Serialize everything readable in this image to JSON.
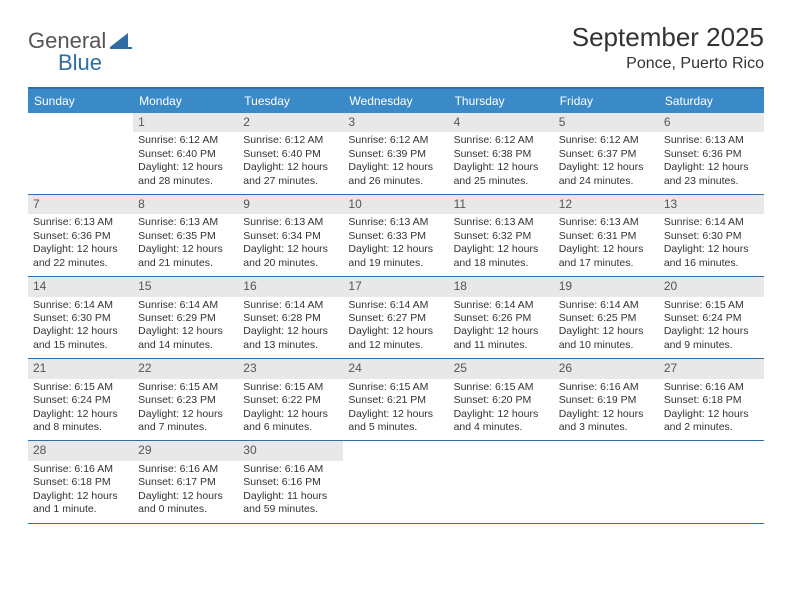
{
  "logo": {
    "text1": "General",
    "text2": "Blue"
  },
  "title": "September 2025",
  "location": "Ponce, Puerto Rico",
  "colors": {
    "header_bg": "#3a8ac8",
    "header_text": "#ffffff",
    "border": "#2f6ea8",
    "daynum_bg": "#e8e8e8",
    "text": "#333333"
  },
  "days_of_week": [
    "Sunday",
    "Monday",
    "Tuesday",
    "Wednesday",
    "Thursday",
    "Friday",
    "Saturday"
  ],
  "weeks": [
    [
      null,
      {
        "n": "1",
        "sr": "Sunrise: 6:12 AM",
        "ss": "Sunset: 6:40 PM",
        "dl": "Daylight: 12 hours and 28 minutes."
      },
      {
        "n": "2",
        "sr": "Sunrise: 6:12 AM",
        "ss": "Sunset: 6:40 PM",
        "dl": "Daylight: 12 hours and 27 minutes."
      },
      {
        "n": "3",
        "sr": "Sunrise: 6:12 AM",
        "ss": "Sunset: 6:39 PM",
        "dl": "Daylight: 12 hours and 26 minutes."
      },
      {
        "n": "4",
        "sr": "Sunrise: 6:12 AM",
        "ss": "Sunset: 6:38 PM",
        "dl": "Daylight: 12 hours and 25 minutes."
      },
      {
        "n": "5",
        "sr": "Sunrise: 6:12 AM",
        "ss": "Sunset: 6:37 PM",
        "dl": "Daylight: 12 hours and 24 minutes."
      },
      {
        "n": "6",
        "sr": "Sunrise: 6:13 AM",
        "ss": "Sunset: 6:36 PM",
        "dl": "Daylight: 12 hours and 23 minutes."
      }
    ],
    [
      {
        "n": "7",
        "sr": "Sunrise: 6:13 AM",
        "ss": "Sunset: 6:36 PM",
        "dl": "Daylight: 12 hours and 22 minutes."
      },
      {
        "n": "8",
        "sr": "Sunrise: 6:13 AM",
        "ss": "Sunset: 6:35 PM",
        "dl": "Daylight: 12 hours and 21 minutes."
      },
      {
        "n": "9",
        "sr": "Sunrise: 6:13 AM",
        "ss": "Sunset: 6:34 PM",
        "dl": "Daylight: 12 hours and 20 minutes."
      },
      {
        "n": "10",
        "sr": "Sunrise: 6:13 AM",
        "ss": "Sunset: 6:33 PM",
        "dl": "Daylight: 12 hours and 19 minutes."
      },
      {
        "n": "11",
        "sr": "Sunrise: 6:13 AM",
        "ss": "Sunset: 6:32 PM",
        "dl": "Daylight: 12 hours and 18 minutes."
      },
      {
        "n": "12",
        "sr": "Sunrise: 6:13 AM",
        "ss": "Sunset: 6:31 PM",
        "dl": "Daylight: 12 hours and 17 minutes."
      },
      {
        "n": "13",
        "sr": "Sunrise: 6:14 AM",
        "ss": "Sunset: 6:30 PM",
        "dl": "Daylight: 12 hours and 16 minutes."
      }
    ],
    [
      {
        "n": "14",
        "sr": "Sunrise: 6:14 AM",
        "ss": "Sunset: 6:30 PM",
        "dl": "Daylight: 12 hours and 15 minutes."
      },
      {
        "n": "15",
        "sr": "Sunrise: 6:14 AM",
        "ss": "Sunset: 6:29 PM",
        "dl": "Daylight: 12 hours and 14 minutes."
      },
      {
        "n": "16",
        "sr": "Sunrise: 6:14 AM",
        "ss": "Sunset: 6:28 PM",
        "dl": "Daylight: 12 hours and 13 minutes."
      },
      {
        "n": "17",
        "sr": "Sunrise: 6:14 AM",
        "ss": "Sunset: 6:27 PM",
        "dl": "Daylight: 12 hours and 12 minutes."
      },
      {
        "n": "18",
        "sr": "Sunrise: 6:14 AM",
        "ss": "Sunset: 6:26 PM",
        "dl": "Daylight: 12 hours and 11 minutes."
      },
      {
        "n": "19",
        "sr": "Sunrise: 6:14 AM",
        "ss": "Sunset: 6:25 PM",
        "dl": "Daylight: 12 hours and 10 minutes."
      },
      {
        "n": "20",
        "sr": "Sunrise: 6:15 AM",
        "ss": "Sunset: 6:24 PM",
        "dl": "Daylight: 12 hours and 9 minutes."
      }
    ],
    [
      {
        "n": "21",
        "sr": "Sunrise: 6:15 AM",
        "ss": "Sunset: 6:24 PM",
        "dl": "Daylight: 12 hours and 8 minutes."
      },
      {
        "n": "22",
        "sr": "Sunrise: 6:15 AM",
        "ss": "Sunset: 6:23 PM",
        "dl": "Daylight: 12 hours and 7 minutes."
      },
      {
        "n": "23",
        "sr": "Sunrise: 6:15 AM",
        "ss": "Sunset: 6:22 PM",
        "dl": "Daylight: 12 hours and 6 minutes."
      },
      {
        "n": "24",
        "sr": "Sunrise: 6:15 AM",
        "ss": "Sunset: 6:21 PM",
        "dl": "Daylight: 12 hours and 5 minutes."
      },
      {
        "n": "25",
        "sr": "Sunrise: 6:15 AM",
        "ss": "Sunset: 6:20 PM",
        "dl": "Daylight: 12 hours and 4 minutes."
      },
      {
        "n": "26",
        "sr": "Sunrise: 6:16 AM",
        "ss": "Sunset: 6:19 PM",
        "dl": "Daylight: 12 hours and 3 minutes."
      },
      {
        "n": "27",
        "sr": "Sunrise: 6:16 AM",
        "ss": "Sunset: 6:18 PM",
        "dl": "Daylight: 12 hours and 2 minutes."
      }
    ],
    [
      {
        "n": "28",
        "sr": "Sunrise: 6:16 AM",
        "ss": "Sunset: 6:18 PM",
        "dl": "Daylight: 12 hours and 1 minute."
      },
      {
        "n": "29",
        "sr": "Sunrise: 6:16 AM",
        "ss": "Sunset: 6:17 PM",
        "dl": "Daylight: 12 hours and 0 minutes."
      },
      {
        "n": "30",
        "sr": "Sunrise: 6:16 AM",
        "ss": "Sunset: 6:16 PM",
        "dl": "Daylight: 11 hours and 59 minutes."
      },
      null,
      null,
      null,
      null
    ]
  ]
}
